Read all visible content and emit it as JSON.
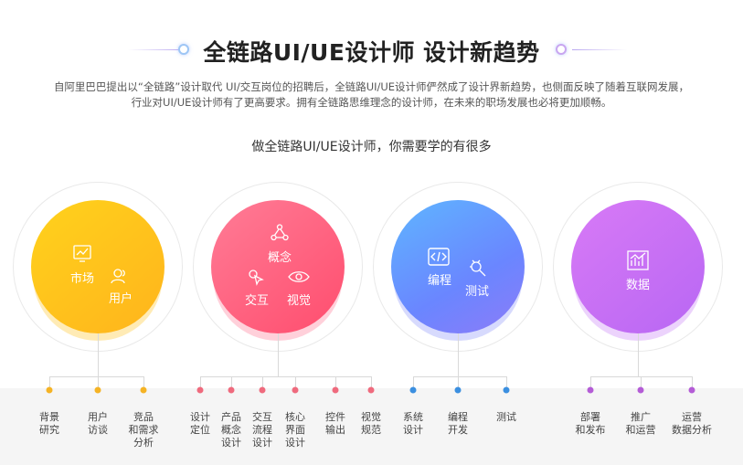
{
  "header": {
    "title": "全链路UI/UE设计师 设计新趋势",
    "intro_line1": "自阿里巴巴提出以“全链路”设计取代 UI/交互岗位的招聘后，全链路UI/UE设计师俨然成了设计界新趋势，也侧面反映了随着互联网发展，",
    "intro_line2": "行业对UI/UE设计师有了更高要求。拥有全链路思维理念的设计师，在未来的职场发展也必将更加顺畅。",
    "subtitle": "做全链路UI/UE设计师，你需要学的有很多"
  },
  "circles": [
    {
      "id": "market",
      "labels": [
        "市场",
        "用户"
      ],
      "color": "#ffc21c",
      "subitems": [
        "背景\n研究",
        "用户\n访谈",
        "竞品\n和需求\n分析"
      ]
    },
    {
      "id": "design",
      "labels": [
        "概念",
        "交互",
        "视觉"
      ],
      "color": "#ff5f7e",
      "subitems": [
        "设计\n定位",
        "产品\n概念\n设计",
        "交互\n流程\n设计",
        "核心\n界面\n设计",
        "控件\n输出",
        "视觉\n规范"
      ]
    },
    {
      "id": "dev",
      "labels": [
        "编程",
        "测试"
      ],
      "color": "#6a8cff",
      "subitems": [
        "系统\n设计",
        "编程\n开发",
        "测试"
      ]
    },
    {
      "id": "data",
      "labels": [
        "数据"
      ],
      "color": "#c56ff5",
      "subitems": [
        "部署\n和发布",
        "推广\n和运营",
        "运营\n数据分析"
      ]
    }
  ]
}
